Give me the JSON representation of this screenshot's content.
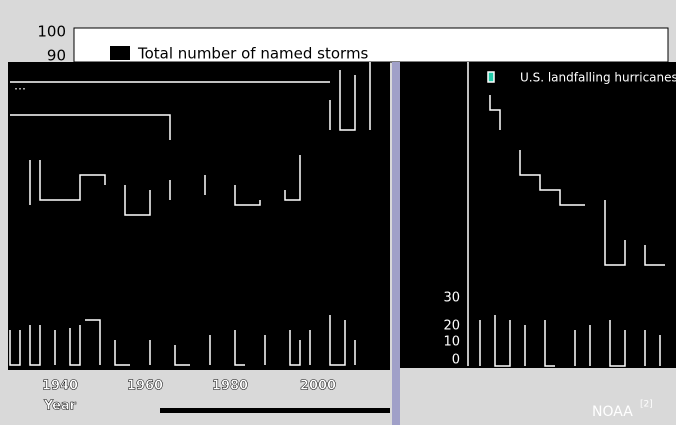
{
  "top_chart": {
    "yticks": [
      "100",
      "90"
    ],
    "legend": "Total number of named storms"
  },
  "left_chart": {
    "xticks": [
      "1940",
      "1960",
      "1980",
      "2000"
    ],
    "xlabel": "Year"
  },
  "right_chart": {
    "yticks": [
      "30",
      "20",
      "10",
      "0"
    ],
    "legend": "U.S. landfalling hurricanes"
  },
  "source": {
    "text": "NOAA",
    "ref": "[2]"
  }
}
